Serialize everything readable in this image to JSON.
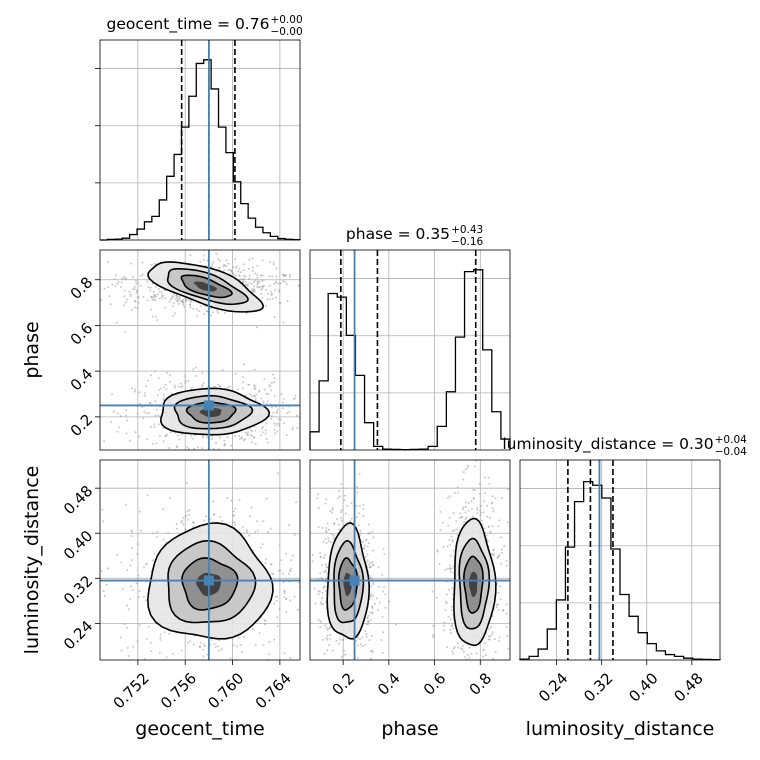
{
  "colors": {
    "truth": "#4682b4",
    "hist": "#000000",
    "grid": "#b0b0b0"
  },
  "chart_data": {
    "type": "corner",
    "parameters": [
      "geocent_time",
      "phase",
      "luminosity_distance"
    ],
    "axis_labels": {
      "geocent_time": "geocent_time",
      "phase": "phase",
      "luminosity_distance": "luminosity_distance"
    },
    "titles": [
      {
        "param": "geocent_time",
        "text": "geocent_time = 0.76",
        "sup": "+0.00",
        "sub": "−0.00"
      },
      {
        "param": "phase",
        "text": "phase = 0.35",
        "sup": "+0.43",
        "sub": "−0.16"
      },
      {
        "param": "luminosity_distance",
        "text": "luminosity_distance = 0.30",
        "sup": "+0.04",
        "sub": "−0.04"
      }
    ],
    "ranges": {
      "geocent_time": [
        0.7488,
        0.7657
      ],
      "phase": [
        0.055,
        0.93
      ],
      "luminosity_distance": [
        0.175,
        0.53
      ]
    },
    "ticks": {
      "geocent_time": [
        "0.752",
        "0.756",
        "0.760",
        "0.764"
      ],
      "phase": [
        "0.2",
        "0.4",
        "0.6",
        "0.8"
      ],
      "luminosity_distance": [
        "0.24",
        "0.32",
        "0.40",
        "0.48"
      ]
    },
    "truths": {
      "geocent_time": 0.758,
      "phase": 0.25,
      "luminosity_distance": 0.316
    },
    "quantiles": {
      "geocent_time": [
        0.7557,
        0.758,
        0.7602
      ],
      "phase": [
        0.19,
        0.35,
        0.78
      ],
      "luminosity_distance": [
        0.26,
        0.3,
        0.34
      ]
    },
    "histograms": {
      "geocent_time": [
        0,
        0.003,
        0.005,
        0.01,
        0.03,
        0.06,
        0.1,
        0.13,
        0.22,
        0.35,
        0.47,
        0.62,
        0.79,
        0.97,
        0.99,
        0.83,
        0.62,
        0.48,
        0.32,
        0.2,
        0.12,
        0.07,
        0.04,
        0.02,
        0.008,
        0.004,
        0.002
      ],
      "phase": [
        0.1,
        0.38,
        0.86,
        0.84,
        0.63,
        0.41,
        0.15,
        0.02,
        0.005,
        0.003,
        0.002,
        0.003,
        0.005,
        0.02,
        0.13,
        0.32,
        0.62,
        0.98,
        0.99,
        0.55,
        0.21,
        0.06
      ],
      "luminosity_distance": [
        0.005,
        0.02,
        0.06,
        0.17,
        0.33,
        0.62,
        0.87,
        0.98,
        0.96,
        0.89,
        0.61,
        0.36,
        0.24,
        0.15,
        0.09,
        0.05,
        0.03,
        0.02,
        0.01,
        0.005,
        0.003,
        0.002
      ]
    },
    "modes_2d": {
      "geocent_time_vs_phase": [
        {
          "x": 0.7577,
          "y": 0.77,
          "sx": 0.0022,
          "sy": 0.035,
          "rot": -0.35,
          "w": 1.0
        },
        {
          "x": 0.7582,
          "y": 0.22,
          "sx": 0.002,
          "sy": 0.045,
          "rot": 0.0,
          "w": 1.0
        }
      ],
      "geocent_time_vs_luminosity_distance": [
        {
          "x": 0.758,
          "y": 0.31,
          "sx": 0.0023,
          "sy": 0.045,
          "rot": 0.0,
          "w": 1.0
        }
      ],
      "phase_vs_luminosity_distance": [
        {
          "x": 0.22,
          "y": 0.31,
          "sx": 0.04,
          "sy": 0.045,
          "rot": 0.0,
          "w": 1.0
        },
        {
          "x": 0.77,
          "y": 0.31,
          "sx": 0.04,
          "sy": 0.05,
          "rot": 0.0,
          "w": 1.0
        }
      ]
    },
    "grid": true
  }
}
